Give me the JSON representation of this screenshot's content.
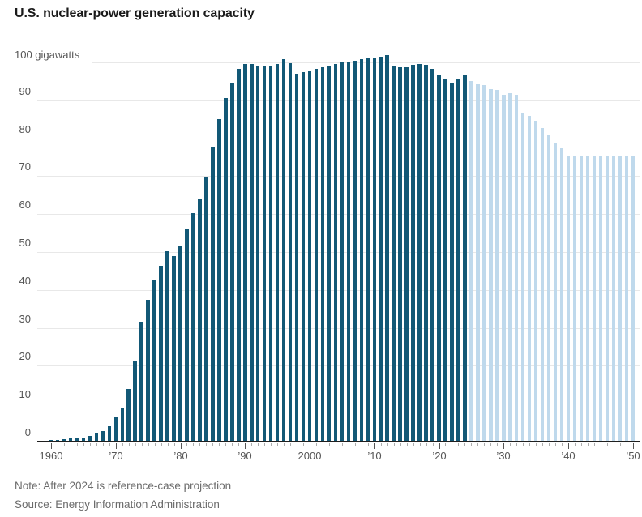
{
  "title": "U.S. nuclear-power generation capacity",
  "footer": {
    "note": "Note: After 2024 is reference-case projection",
    "source": "Source: Energy Information Administration"
  },
  "colors": {
    "historical_bar": "#125876",
    "projection_bar": "#BFD9EC",
    "axis_line": "#1f1f1f",
    "gridline": "#e8e8e8",
    "tick_minor": "#adadad",
    "tick_major": "#555555",
    "axis_text": "#555555",
    "footer_text": "#6b6b6b",
    "title_text": "#1a1a1a"
  },
  "chart_data": {
    "type": "bar",
    "title": "U.S. nuclear-power generation capacity",
    "unit_label": "100 gigawatts",
    "ylabel": "gigawatts",
    "xlabel": "",
    "ylim": [
      0,
      100
    ],
    "grid": true,
    "legend": "none",
    "yticks": [
      0,
      10,
      20,
      30,
      40,
      50,
      60,
      70,
      80,
      90,
      100
    ],
    "xticks": [
      {
        "year": 1960,
        "label": "1960"
      },
      {
        "year": 1970,
        "label": "’70"
      },
      {
        "year": 1980,
        "label": "’80"
      },
      {
        "year": 1990,
        "label": "’90"
      },
      {
        "year": 2000,
        "label": "2000"
      },
      {
        "year": 2010,
        "label": "’10"
      },
      {
        "year": 2020,
        "label": "’20"
      },
      {
        "year": 2030,
        "label": "’30"
      },
      {
        "year": 2040,
        "label": "’40"
      },
      {
        "year": 2050,
        "label": "’50"
      }
    ],
    "projection_start_year": 2025,
    "projection_note": "After 2024 is reference-case projection",
    "x": [
      1960,
      1961,
      1962,
      1963,
      1964,
      1965,
      1966,
      1967,
      1968,
      1969,
      1970,
      1971,
      1972,
      1973,
      1974,
      1975,
      1976,
      1977,
      1978,
      1979,
      1980,
      1981,
      1982,
      1983,
      1984,
      1985,
      1986,
      1987,
      1988,
      1989,
      1990,
      1991,
      1992,
      1993,
      1994,
      1995,
      1996,
      1997,
      1998,
      1999,
      2000,
      2001,
      2002,
      2003,
      2004,
      2005,
      2006,
      2007,
      2008,
      2009,
      2010,
      2011,
      2012,
      2013,
      2014,
      2015,
      2016,
      2017,
      2018,
      2019,
      2020,
      2021,
      2022,
      2023,
      2024,
      2025,
      2026,
      2027,
      2028,
      2029,
      2030,
      2031,
      2032,
      2033,
      2034,
      2035,
      2036,
      2037,
      2038,
      2039,
      2040,
      2041,
      2042,
      2043,
      2044,
      2045,
      2046,
      2047,
      2048,
      2049,
      2050
    ],
    "values": [
      0.4,
      0.4,
      0.6,
      0.8,
      0.8,
      0.9,
      1.5,
      2.3,
      2.8,
      4.0,
      6.5,
      8.7,
      14.0,
      21.1,
      31.6,
      37.3,
      42.6,
      46.4,
      50.3,
      49.0,
      51.8,
      56.1,
      60.2,
      63.9,
      69.7,
      77.8,
      85.1,
      90.7,
      94.7,
      98.3,
      99.6,
      99.6,
      99.0,
      99.0,
      99.1,
      99.5,
      100.8,
      99.7,
      97.1,
      97.4,
      97.9,
      98.2,
      98.7,
      99.2,
      99.6,
      100.0,
      100.3,
      100.5,
      100.8,
      101.0,
      101.2,
      101.4,
      102.0,
      99.2,
      98.7,
      98.7,
      99.3,
      99.6,
      99.4,
      98.2,
      96.6,
      95.5,
      94.7,
      95.8,
      96.9,
      95.1,
      94.2,
      94.1,
      92.9,
      92.8,
      91.5,
      91.9,
      91.5,
      86.7,
      86.0,
      84.7,
      82.6,
      81.0,
      78.7,
      77.4,
      75.5,
      75.2,
      75.2,
      75.2,
      75.2,
      75.2,
      75.2,
      75.2,
      75.2,
      75.2,
      75.2
    ]
  }
}
